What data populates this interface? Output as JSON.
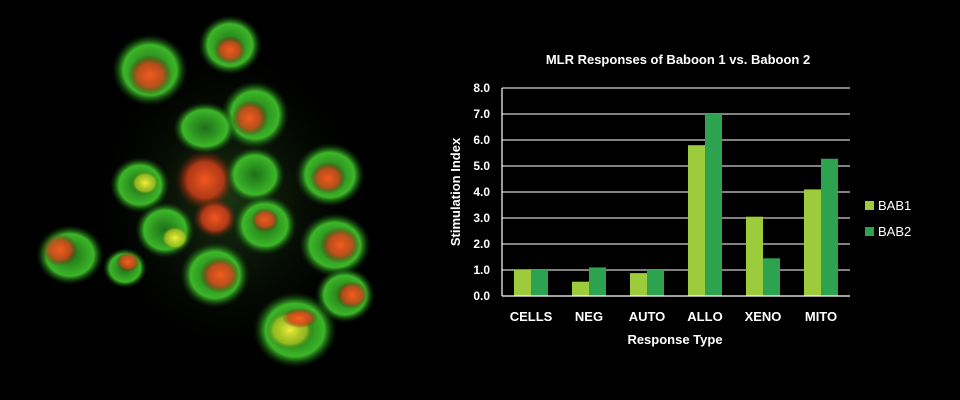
{
  "micrograph": {
    "description": "fluorescence-micrograph-image"
  },
  "chart_data": {
    "type": "bar",
    "title": "MLR Responses of Baboon 1 vs. Baboon 2",
    "xlabel": "Response Type",
    "ylabel": "Stimulation Index",
    "categories": [
      "CELLS",
      "NEG",
      "AUTO",
      "ALLO",
      "XENO",
      "MITO"
    ],
    "series": [
      {
        "name": "BAB1",
        "color": "#9ccc3c",
        "values": [
          1.0,
          0.55,
          0.88,
          5.8,
          3.05,
          4.1
        ]
      },
      {
        "name": "BAB2",
        "color": "#2ea34f",
        "values": [
          1.0,
          1.1,
          1.0,
          7.0,
          1.45,
          5.28
        ]
      }
    ],
    "ylim": [
      0,
      8
    ],
    "yticks": [
      "0.0",
      "1.0",
      "2.0",
      "3.0",
      "4.0",
      "5.0",
      "6.0",
      "7.0",
      "8.0"
    ],
    "grid": true,
    "legend": "right"
  }
}
